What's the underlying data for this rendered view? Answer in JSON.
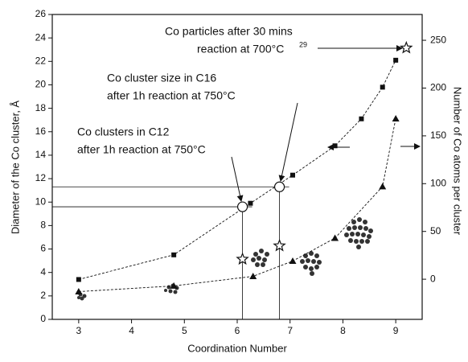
{
  "chart_data": {
    "type": "dual-axis-scatter-line",
    "x_label": "Coordination Number",
    "y_label": "Diameter of the Co cluster, Å",
    "y2_label": "Number of Co atoms per cluster",
    "xlim": [
      2.5,
      9.5
    ],
    "xticks": [
      3,
      4,
      5,
      6,
      7,
      8,
      9
    ],
    "ylim": [
      0,
      26
    ],
    "yticks": [
      0,
      2,
      4,
      6,
      8,
      10,
      12,
      14,
      16,
      18,
      20,
      22,
      24,
      26
    ],
    "y2lim": [
      -42,
      277
    ],
    "y2ticks": [
      0,
      50,
      100,
      150,
      200,
      250
    ],
    "series": [
      {
        "marker": "square",
        "color": "#111111",
        "axis": "y",
        "line": true,
        "x": [
          3,
          4.8,
          6.25,
          7.05,
          7.85,
          8.35,
          8.75,
          9.0
        ],
        "values": [
          3.4,
          5.5,
          9.9,
          12.3,
          14.8,
          17.1,
          19.8,
          22.1
        ]
      },
      {
        "marker": "triangle",
        "color": "#111111",
        "axis": "y2",
        "line": true,
        "x": [
          3,
          4.8,
          6.3,
          7.05,
          7.85,
          8.75,
          9.0
        ],
        "values": [
          -13,
          -7,
          3,
          19,
          43,
          97,
          168
        ]
      },
      {
        "marker": "circle",
        "color": "#111111",
        "axis": "y",
        "line": false,
        "guides": true,
        "x": [
          6.1,
          6.8
        ],
        "values": [
          9.6,
          11.3
        ]
      },
      {
        "marker": "star",
        "color": "#111111",
        "axis": "y2",
        "line": false,
        "x": [
          6.1,
          6.8,
          9.2
        ],
        "values": [
          21,
          35,
          242
        ]
      }
    ],
    "annotations": [
      "Co particles after 30 mins",
      "reaction at 700°C",
      "29",
      "Co cluster size in C16",
      "after 1h reaction at 750°C",
      "Co clusters in C12",
      "after 1h reaction at 750°C"
    ]
  }
}
